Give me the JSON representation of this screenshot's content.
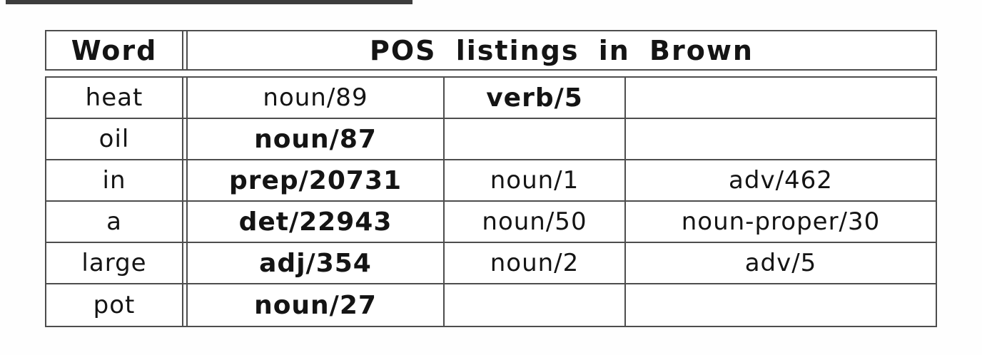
{
  "page": {
    "background_color": "#fefefe",
    "top_rule_color": "#3d3d3d"
  },
  "table": {
    "colors": {
      "border": "#4d4d4d",
      "text": "#141414",
      "cell_background": "#ffffff"
    },
    "header": {
      "word_col_label": "Word",
      "pos_col_label": "POS listings in Brown"
    },
    "rows": [
      {
        "word": "heat",
        "cells": [
          {
            "text": "noun/89",
            "bold": false
          },
          {
            "text": "verb/5",
            "bold": true
          },
          {
            "text": "",
            "bold": false
          }
        ]
      },
      {
        "word": "oil",
        "cells": [
          {
            "text": "noun/87",
            "bold": true
          },
          {
            "text": "",
            "bold": false
          },
          {
            "text": "",
            "bold": false
          }
        ]
      },
      {
        "word": "in",
        "cells": [
          {
            "text": "prep/20731",
            "bold": true
          },
          {
            "text": "noun/1",
            "bold": false
          },
          {
            "text": "adv/462",
            "bold": false
          }
        ]
      },
      {
        "word": "a",
        "cells": [
          {
            "text": "det/22943",
            "bold": true
          },
          {
            "text": "noun/50",
            "bold": false
          },
          {
            "text": "noun-proper/30",
            "bold": false
          }
        ]
      },
      {
        "word": "large",
        "cells": [
          {
            "text": "adj/354",
            "bold": true
          },
          {
            "text": "noun/2",
            "bold": false
          },
          {
            "text": "adv/5",
            "bold": false
          }
        ]
      },
      {
        "word": "pot",
        "cells": [
          {
            "text": "noun/27",
            "bold": true
          },
          {
            "text": "",
            "bold": false
          },
          {
            "text": "",
            "bold": false
          }
        ]
      }
    ]
  }
}
